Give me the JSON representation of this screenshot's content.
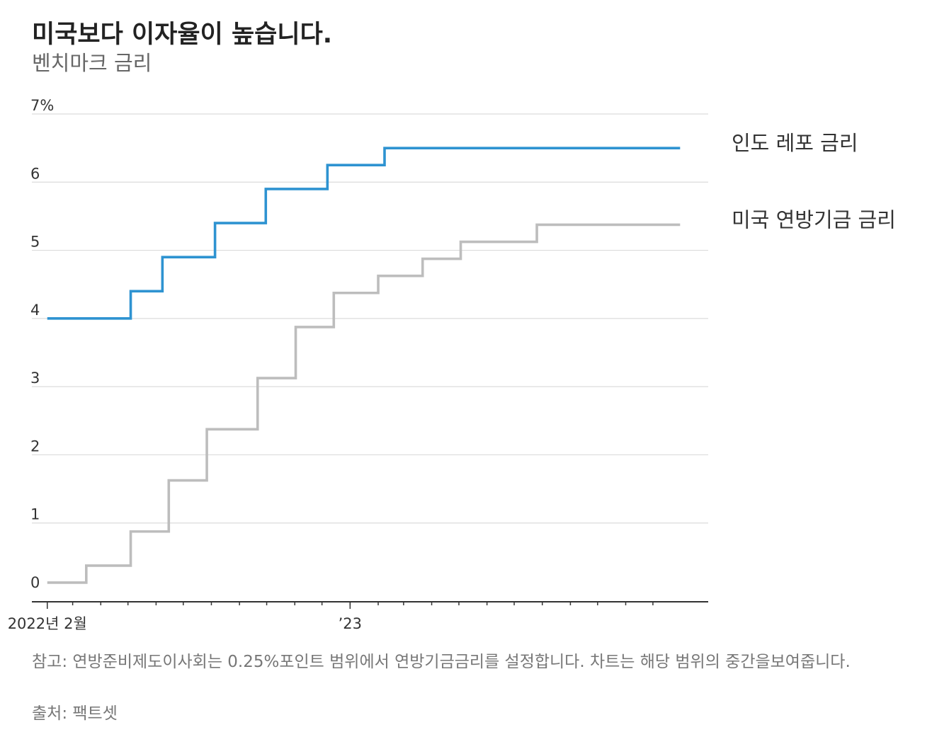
{
  "title": "미국보다 이자율이 높습니다.",
  "subtitle": "벤치마크 금리",
  "note": "참고: 연방준비제도이사회는 0.25%포인트 범위에서 연방기금금리를 설정합니다. 차트는 해당 범위의 중간을보여줍니다.",
  "source": "출처: 팩트셋",
  "chart_data": {
    "type": "line",
    "step": true,
    "ylim": [
      0,
      7
    ],
    "yticks": [
      {
        "value": 0,
        "label": "0"
      },
      {
        "value": 1,
        "label": "1"
      },
      {
        "value": 2,
        "label": "2"
      },
      {
        "value": 3,
        "label": "3"
      },
      {
        "value": 4,
        "label": "4"
      },
      {
        "value": 5,
        "label": "5"
      },
      {
        "value": 6,
        "label": "6"
      },
      {
        "value": 7,
        "label": "7%"
      }
    ],
    "xlim": [
      "2022-01-15",
      "2024-01-31"
    ],
    "xticks": [
      {
        "date": "2022-02-01",
        "label": "2022년 2월"
      },
      {
        "date": "2023-01-01",
        "label": "’23"
      }
    ],
    "month_ticks": [
      "2022-02-01",
      "2022-03-01",
      "2022-04-01",
      "2022-05-01",
      "2022-06-01",
      "2022-07-01",
      "2022-08-01",
      "2022-09-01",
      "2022-10-01",
      "2022-11-01",
      "2022-12-01",
      "2023-01-01",
      "2023-02-01",
      "2023-03-01",
      "2023-04-01",
      "2023-05-01",
      "2023-06-01",
      "2023-07-01",
      "2023-08-01",
      "2023-09-01",
      "2023-10-01",
      "2023-11-01",
      "2023-12-01"
    ],
    "grid": true,
    "series": [
      {
        "name": "인도 레포 금리",
        "color": "#2E93D1",
        "points": [
          {
            "x": "2022-02-01",
            "y": 4.0
          },
          {
            "x": "2022-05-04",
            "y": 4.4
          },
          {
            "x": "2022-06-08",
            "y": 4.9
          },
          {
            "x": "2022-08-05",
            "y": 5.4
          },
          {
            "x": "2022-09-30",
            "y": 5.9
          },
          {
            "x": "2022-12-07",
            "y": 6.25
          },
          {
            "x": "2023-02-08",
            "y": 6.5
          },
          {
            "x": "2023-12-31",
            "y": 6.5
          }
        ]
      },
      {
        "name": "미국 연방기금 금리",
        "color": "#BDBDBD",
        "points": [
          {
            "x": "2022-02-01",
            "y": 0.125
          },
          {
            "x": "2022-03-16",
            "y": 0.375
          },
          {
            "x": "2022-05-04",
            "y": 0.875
          },
          {
            "x": "2022-06-15",
            "y": 1.625
          },
          {
            "x": "2022-07-27",
            "y": 2.375
          },
          {
            "x": "2022-09-21",
            "y": 3.125
          },
          {
            "x": "2022-11-02",
            "y": 3.875
          },
          {
            "x": "2022-12-14",
            "y": 4.375
          },
          {
            "x": "2023-02-01",
            "y": 4.625
          },
          {
            "x": "2023-03-22",
            "y": 4.875
          },
          {
            "x": "2023-05-03",
            "y": 5.125
          },
          {
            "x": "2023-07-26",
            "y": 5.375
          },
          {
            "x": "2023-12-31",
            "y": 5.375
          }
        ]
      }
    ]
  }
}
